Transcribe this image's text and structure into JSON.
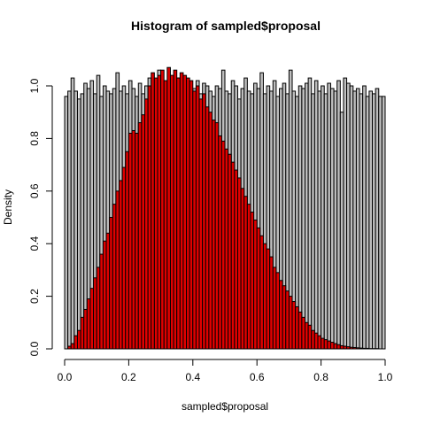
{
  "chart_data": {
    "type": "bar",
    "title": "Histogram of sampled$proposal",
    "xlabel": "sampled$proposal",
    "ylabel": "Density",
    "xlim": [
      0,
      1
    ],
    "ylim": [
      0,
      1.08
    ],
    "x_ticks": [
      "0.0",
      "0.2",
      "0.4",
      "0.6",
      "0.8",
      "1.0"
    ],
    "y_ticks": [
      "0.0",
      "0.2",
      "0.4",
      "0.6",
      "0.8",
      "1.0"
    ],
    "bin_width": 0.01,
    "series": [
      {
        "color": "#bebebe",
        "values": [
          0.96,
          0.98,
          1.03,
          0.98,
          0.95,
          0.97,
          1.01,
          0.99,
          1.02,
          0.97,
          1.04,
          0.96,
          1.0,
          0.98,
          0.97,
          0.99,
          1.05,
          0.98,
          1.0,
          0.97,
          1.02,
          0.99,
          0.96,
          1.01,
          0.97,
          1.0,
          1.03,
          0.97,
          0.99,
          1.06,
          1.0,
          0.98,
          0.97,
          1.01,
          0.99,
          1.03,
          0.98,
          0.97,
          1.0,
          0.96,
          0.99,
          1.02,
          0.97,
          1.01,
          1.0,
          0.98,
          0.96,
          1.0,
          0.99,
          1.06,
          0.98,
          0.97,
          1.02,
          1.0,
          0.95,
          0.99,
          1.03,
          0.98,
          0.97,
          1.01,
          0.99,
          1.05,
          0.97,
          1.0,
          0.98,
          1.02,
          0.96,
          0.99,
          1.01,
          0.97,
          1.06,
          0.98,
          0.96,
          1.0,
          0.99,
          1.01,
          1.03,
          0.97,
          1.02,
          0.98,
          1.0,
          0.97,
          1.01,
          0.99,
          0.98,
          1.02,
          0.9,
          1.03,
          1.01,
          1.0,
          0.98,
          0.99,
          0.97,
          1.0,
          0.96,
          0.98,
          0.97,
          0.99,
          0.96,
          0.96
        ]
      },
      {
        "color": "#e00000",
        "values": [
          0.0,
          0.01,
          0.02,
          0.05,
          0.07,
          0.12,
          0.15,
          0.19,
          0.23,
          0.27,
          0.31,
          0.36,
          0.41,
          0.44,
          0.5,
          0.55,
          0.6,
          0.64,
          0.69,
          0.75,
          0.82,
          0.83,
          0.82,
          0.86,
          0.89,
          0.95,
          1.0,
          1.05,
          1.03,
          1.04,
          1.06,
          1.02,
          1.07,
          1.04,
          1.06,
          1.03,
          1.05,
          1.04,
          1.03,
          1.02,
          0.98,
          1.0,
          0.95,
          0.97,
          0.92,
          0.9,
          0.87,
          0.86,
          0.81,
          0.79,
          0.76,
          0.74,
          0.71,
          0.68,
          0.65,
          0.61,
          0.58,
          0.55,
          0.52,
          0.49,
          0.46,
          0.43,
          0.4,
          0.38,
          0.35,
          0.31,
          0.29,
          0.26,
          0.24,
          0.22,
          0.2,
          0.18,
          0.16,
          0.14,
          0.12,
          0.1,
          0.09,
          0.07,
          0.06,
          0.05,
          0.04,
          0.035,
          0.03,
          0.025,
          0.02,
          0.016,
          0.012,
          0.01,
          0.008,
          0.006,
          0.005,
          0.004,
          0.003,
          0.002,
          0.002,
          0.001,
          0.001,
          0.001,
          0.0,
          0.0
        ]
      }
    ]
  }
}
